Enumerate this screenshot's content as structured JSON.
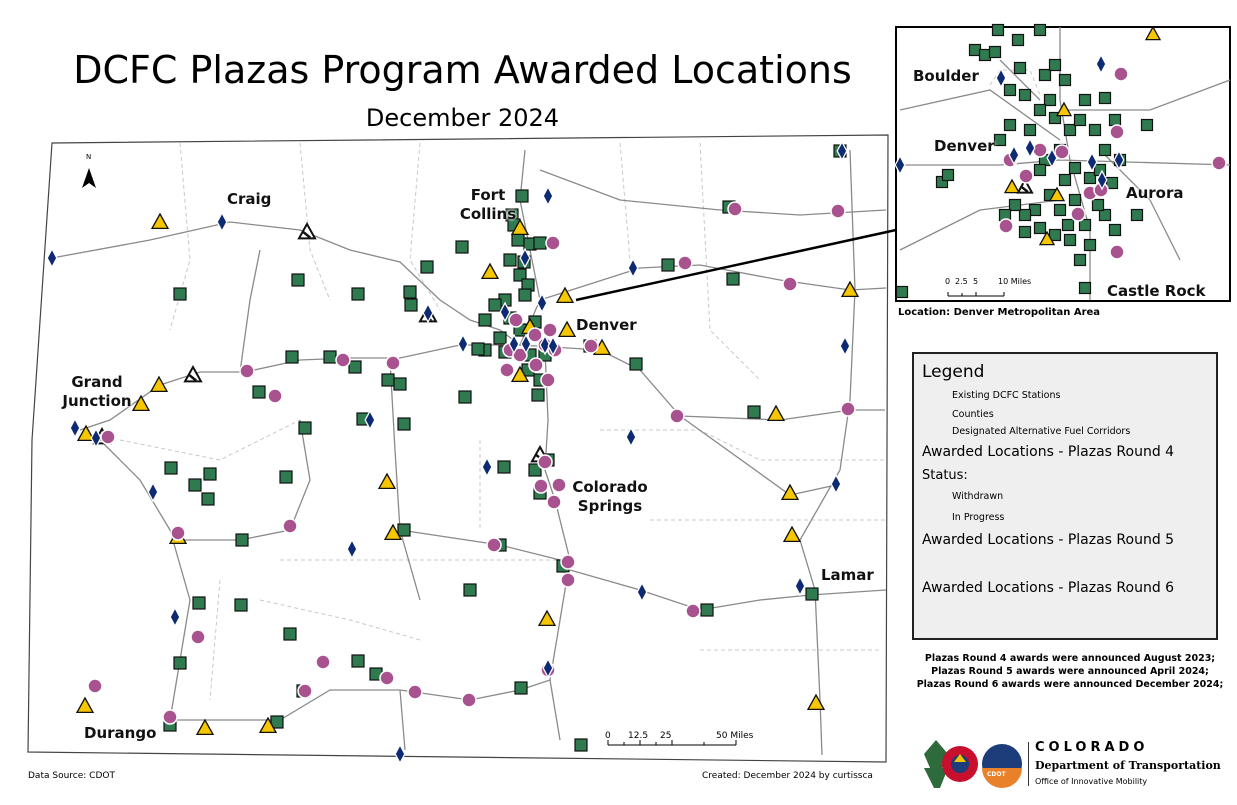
{
  "title": "DCFC Plazas Program Awarded Locations",
  "subtitle": "December 2024",
  "cities": {
    "craig": "Craig",
    "fort_collins": "Fort Collins",
    "denver": "Denver",
    "grand_junction": "Grand Junction",
    "colorado_springs": "Colorado Springs",
    "lamar": "Lamar",
    "durango": "Durango"
  },
  "inset": {
    "boulder": "Boulder",
    "denver": "Denver",
    "aurora": "Aurora",
    "castle_rock": "Castle Rock",
    "scale_ticks": [
      "0",
      "2.5",
      "5",
      "10 Miles"
    ],
    "caption": "Location: Denver Metropolitan Area"
  },
  "scale": {
    "ticks": [
      "0",
      "12.5",
      "25",
      "50 Miles"
    ]
  },
  "north": "N",
  "legend": {
    "title": "Legend",
    "existing": "Existing DCFC Stations",
    "counties": "Counties",
    "corridors": "Designated Alternative Fuel Corridors",
    "round4": "Awarded Locations - Plazas Round 4",
    "status": "Status:",
    "withdrawn": "Withdrawn",
    "in_progress": "In Progress",
    "round5": "Awarded Locations - Plazas Round 5",
    "round6": "Awarded Locations - Plazas Round 6"
  },
  "notes": [
    "Plazas Round 4 awards were announced August 2023;",
    "Plazas Round 5 awards were announced April 2024;",
    "Plazas Round 6 awards were announced December 2024;"
  ],
  "footer": {
    "source": "Data Source: CDOT",
    "created": "Created: December 2024 by curtissca"
  },
  "logo": {
    "line1": "COLORADO",
    "line2": "Department of Transportation",
    "line3": "Office of Innovative Mobility",
    "badge": "CDOT"
  },
  "colors": {
    "existing": "#2f7a4e",
    "round5": "#a8528f",
    "round6": "#0e2a72",
    "in_progress": "#f6c600",
    "road": "#8a8a8a",
    "county": "#c8c8c8"
  }
}
